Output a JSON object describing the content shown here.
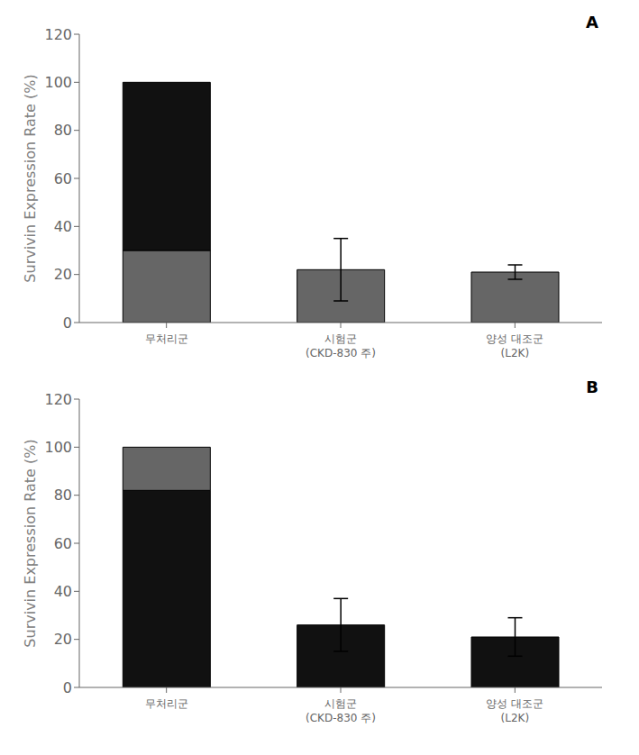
{
  "chart_data": [
    {
      "type": "bar",
      "stacked": true,
      "grid": false,
      "annotations": [
        "A"
      ],
      "ylabel": "Survivin Expression Rate (%)",
      "categories": [
        "무처리군",
        "시험군\n(CKD-830 주)",
        "양성 대조군\n(L2K)"
      ],
      "series": [
        {
          "color": "#666666",
          "values": [
            30,
            22,
            21
          ],
          "errors": [
            null,
            13,
            3
          ]
        },
        {
          "color": "#111111",
          "values": [
            70,
            null,
            null
          ]
        }
      ],
      "ylim": [
        0,
        120
      ],
      "yticks": [
        0,
        20,
        40,
        60,
        80,
        100,
        120
      ]
    },
    {
      "type": "bar",
      "stacked": true,
      "grid": false,
      "annotations": [
        "B"
      ],
      "ylabel": "Survivin Expression Rate (%)",
      "categories": [
        "무처리군",
        "시험군\n(CKD-830 주)",
        "양성 대조군\n(L2K)"
      ],
      "series": [
        {
          "color": "#111111",
          "values": [
            82,
            26,
            21
          ],
          "errors": [
            null,
            11,
            8
          ]
        },
        {
          "color": "#666666",
          "values": [
            18,
            null,
            null
          ]
        }
      ],
      "ylim": [
        0,
        120
      ],
      "yticks": [
        0,
        20,
        40,
        60,
        80,
        100,
        120
      ]
    }
  ]
}
